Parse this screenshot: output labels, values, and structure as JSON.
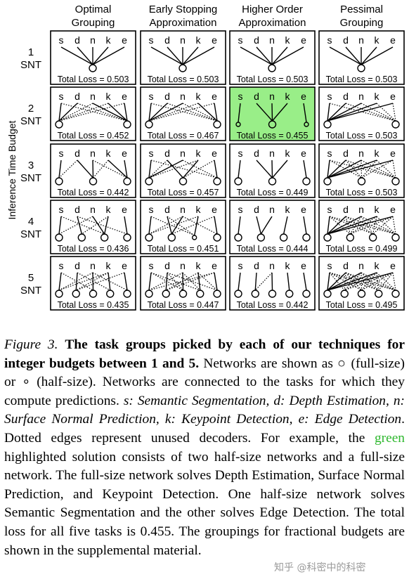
{
  "figure": {
    "columns": [
      {
        "line1": "Optimal",
        "line2": "Grouping"
      },
      {
        "line1": "Early Stopping",
        "line2": "Approximation"
      },
      {
        "line1": "Higher Order",
        "line2": "Approximation"
      },
      {
        "line1": "Pessimal",
        "line2": "Grouping"
      }
    ],
    "rows": [
      {
        "num": "1",
        "unit": "SNT"
      },
      {
        "num": "2",
        "unit": "SNT"
      },
      {
        "num": "3",
        "unit": "SNT"
      },
      {
        "num": "4",
        "unit": "SNT"
      },
      {
        "num": "5",
        "unit": "SNT"
      }
    ],
    "y_axis_label": "Inference Time Budget",
    "task_letters": [
      "s",
      "d",
      "n",
      "k",
      "e"
    ],
    "loss_prefix": "Total Loss = ",
    "highlight_color": "#99ee88",
    "cells": [
      [
        {
          "loss": "0.503",
          "nets": [
            {
              "size": "full",
              "used": [
                0,
                1,
                2,
                3,
                4
              ],
              "unused": []
            }
          ]
        },
        {
          "loss": "0.503",
          "nets": [
            {
              "size": "full",
              "used": [
                0,
                1,
                2,
                3,
                4
              ],
              "unused": []
            }
          ]
        },
        {
          "loss": "0.503",
          "nets": [
            {
              "size": "full",
              "used": [
                0,
                1,
                2,
                3,
                4
              ],
              "unused": []
            }
          ]
        },
        {
          "loss": "0.503",
          "nets": [
            {
              "size": "full",
              "used": [
                0,
                1,
                2,
                3,
                4
              ],
              "unused": []
            }
          ]
        }
      ],
      [
        {
          "loss": "0.452",
          "nets": [
            {
              "size": "full",
              "used": [
                0,
                1
              ],
              "unused": [
                2,
                3,
                4
              ]
            },
            {
              "size": "full",
              "used": [
                2,
                3,
                4
              ],
              "unused": [
                0,
                1
              ]
            }
          ]
        },
        {
          "loss": "0.467",
          "nets": [
            {
              "size": "full",
              "used": [
                0,
                1,
                2
              ],
              "unused": [
                3,
                4
              ]
            },
            {
              "size": "full",
              "used": [
                3,
                4
              ],
              "unused": [
                0,
                1,
                2
              ]
            }
          ]
        },
        {
          "loss": "0.455",
          "highlight": true,
          "nets": [
            {
              "size": "half",
              "used": [
                0
              ],
              "unused": []
            },
            {
              "size": "full",
              "used": [
                1,
                2,
                3
              ],
              "unused": []
            },
            {
              "size": "half",
              "used": [
                4
              ],
              "unused": []
            }
          ]
        },
        {
          "loss": "0.503",
          "nets": [
            {
              "size": "full",
              "used": [
                0,
                1,
                2,
                3,
                4
              ],
              "unused": []
            },
            {
              "size": "full",
              "used": [],
              "unused": [
                0,
                1,
                2,
                3,
                4
              ]
            }
          ]
        }
      ],
      [
        {
          "loss": "0.442",
          "nets": [
            {
              "size": "full",
              "used": [
                0
              ],
              "unused": [
                1
              ]
            },
            {
              "size": "full",
              "used": [
                1,
                2
              ],
              "unused": [
                3
              ]
            },
            {
              "size": "full",
              "used": [
                3,
                4
              ],
              "unused": [
                2
              ]
            }
          ]
        },
        {
          "loss": "0.457",
          "nets": [
            {
              "size": "full",
              "used": [
                0,
                2
              ],
              "unused": [
                1,
                3
              ]
            },
            {
              "size": "full",
              "used": [
                1,
                3
              ],
              "unused": [
                4
              ]
            },
            {
              "size": "full",
              "used": [
                4
              ],
              "unused": [
                0,
                2
              ]
            }
          ]
        },
        {
          "loss": "0.449",
          "nets": [
            {
              "size": "full",
              "used": [
                0
              ],
              "unused": []
            },
            {
              "size": "full",
              "used": [
                1,
                2,
                3
              ],
              "unused": []
            },
            {
              "size": "full",
              "used": [
                4
              ],
              "unused": []
            }
          ]
        },
        {
          "loss": "0.503",
          "nets": [
            {
              "size": "full",
              "used": [
                0,
                1,
                2,
                3,
                4
              ],
              "unused": []
            },
            {
              "size": "full",
              "used": [],
              "unused": [
                0,
                1,
                2,
                3,
                4
              ]
            },
            {
              "size": "full",
              "used": [],
              "unused": [
                0,
                1,
                2,
                3,
                4
              ]
            }
          ]
        }
      ],
      [
        {
          "loss": "0.436",
          "nets": [
            {
              "size": "full",
              "used": [
                0
              ],
              "unused": [
                2
              ]
            },
            {
              "size": "full",
              "used": [
                1
              ],
              "unused": [
                3
              ]
            },
            {
              "size": "full",
              "used": [
                2,
                3
              ],
              "unused": [
                0
              ]
            },
            {
              "size": "full",
              "used": [
                4
              ],
              "unused": [
                1
              ]
            }
          ]
        },
        {
          "loss": "0.451",
          "nets": [
            {
              "size": "full",
              "used": [
                0
              ],
              "unused": [
                2,
                3
              ]
            },
            {
              "size": "full",
              "used": [
                1,
                2
              ],
              "unused": [
                4
              ]
            },
            {
              "size": "half",
              "used": [
                3
              ],
              "unused": [
                0,
                1
              ]
            },
            {
              "size": "full",
              "used": [
                4
              ],
              "unused": [
                2
              ]
            }
          ]
        },
        {
          "loss": "0.444",
          "nets": [
            {
              "size": "full",
              "used": [
                0
              ],
              "unused": []
            },
            {
              "size": "full",
              "used": [
                1,
                2
              ],
              "unused": []
            },
            {
              "size": "full",
              "used": [
                3
              ],
              "unused": []
            },
            {
              "size": "full",
              "used": [
                4
              ],
              "unused": []
            }
          ]
        },
        {
          "loss": "0.499",
          "nets": [
            {
              "size": "full",
              "used": [
                0,
                1,
                2,
                3,
                4
              ],
              "unused": []
            },
            {
              "size": "full",
              "used": [],
              "unused": [
                0,
                1,
                2,
                3,
                4
              ]
            },
            {
              "size": "full",
              "used": [],
              "unused": [
                0,
                1,
                2,
                3,
                4
              ]
            },
            {
              "size": "full",
              "used": [],
              "unused": [
                0,
                1,
                2,
                3,
                4
              ]
            }
          ]
        }
      ],
      [
        {
          "loss": "0.435",
          "nets": [
            {
              "size": "full",
              "used": [
                0
              ],
              "unused": [
                2,
                3
              ]
            },
            {
              "size": "full",
              "used": [
                1
              ],
              "unused": [
                3,
                4
              ]
            },
            {
              "size": "full",
              "used": [
                2
              ],
              "unused": [
                0
              ]
            },
            {
              "size": "full",
              "used": [
                3
              ],
              "unused": [
                1
              ]
            },
            {
              "size": "full",
              "used": [
                4
              ],
              "unused": [
                2
              ]
            }
          ]
        },
        {
          "loss": "0.447",
          "nets": [
            {
              "size": "full",
              "used": [
                0
              ],
              "unused": [
                2,
                4
              ]
            },
            {
              "size": "full",
              "used": [
                1
              ],
              "unused": [
                3,
                4
              ]
            },
            {
              "size": "full",
              "used": [
                2
              ],
              "unused": [
                0,
                1
              ]
            },
            {
              "size": "full",
              "used": [
                3
              ],
              "unused": [
                0,
                2
              ]
            },
            {
              "size": "full",
              "used": [
                4
              ],
              "unused": [
                1,
                3
              ]
            }
          ]
        },
        {
          "loss": "0.442",
          "nets": [
            {
              "size": "full",
              "used": [
                0
              ],
              "unused": []
            },
            {
              "size": "full",
              "used": [
                1
              ],
              "unused": [
                2
              ]
            },
            {
              "size": "full",
              "used": [
                2
              ],
              "unused": []
            },
            {
              "size": "full",
              "used": [
                3
              ],
              "unused": []
            },
            {
              "size": "full",
              "used": [
                4
              ],
              "unused": []
            }
          ]
        },
        {
          "loss": "0.495",
          "nets": [
            {
              "size": "full",
              "used": [
                0,
                1,
                2,
                3,
                4
              ],
              "unused": []
            },
            {
              "size": "full",
              "used": [],
              "unused": [
                0,
                1,
                2,
                3,
                4
              ]
            },
            {
              "size": "full",
              "used": [],
              "unused": [
                0,
                1,
                2,
                3,
                4
              ]
            },
            {
              "size": "full",
              "used": [],
              "unused": [
                0,
                1,
                2,
                3,
                4
              ]
            },
            {
              "size": "full",
              "used": [],
              "unused": [
                0,
                1,
                2,
                3,
                4
              ]
            }
          ]
        }
      ]
    ]
  },
  "caption": {
    "label": "Figure 3.",
    "bold_text": "The task groups picked by each of our techniques for integer budgets between 1 and 5.",
    "text1": " Networks are shown as ",
    "full_symbol": "○",
    "text2": " (full-size) or ",
    "half_symbol": "∘",
    "text3": " (half-size). Networks are connected to the tasks for which they compute predictions. ",
    "tasks_italic": "s: Semantic Segmentation, d: Depth Estimation, n: Surface Normal Prediction, k: Keypoint Detection, e: Edge Detection",
    "text4": ". Dotted edges represent unused decoders. For example, the ",
    "green_word": "green",
    "text5": " highlighted solution consists of two half-size networks and a full-size network. The full-size network solves Depth Estimation, Surface Normal Prediction, and Keypoint Detection. One half-size network solves Semantic Segmentation and the other solves Edge Detection. The total loss for all five tasks is 0.455. The groupings for fractional budgets are shown in the supplemental material."
  },
  "watermark": "知乎 @科密中的科密"
}
